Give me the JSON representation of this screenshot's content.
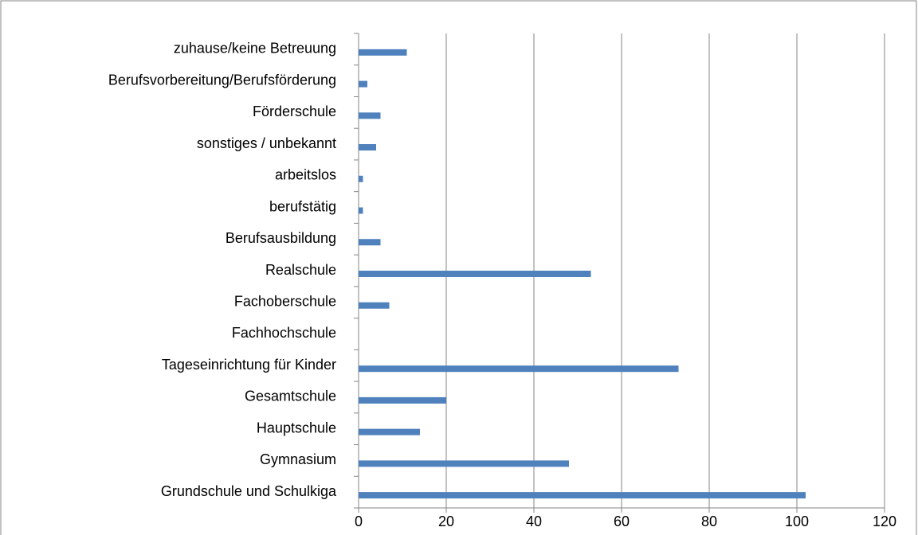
{
  "chart_data": {
    "type": "bar",
    "orientation": "horizontal",
    "categories": [
      "Grundschule und Schulkiga",
      "Gymnasium",
      "Hauptschule",
      "Gesamtschule",
      "Tageseinrichtung für Kinder",
      "Fachhochschule",
      "Fachoberschule",
      "Realschule",
      "Berufsausbildung",
      "berufstätig",
      "arbeitslos",
      "sonstiges / unbekannt",
      "Förderschule",
      "Berufsvorbereitung/Berufsförderung",
      "zuhause/keine Betreuung"
    ],
    "values": [
      102,
      48,
      14,
      20,
      73,
      0,
      7,
      53,
      5,
      1,
      1,
      4,
      5,
      2,
      11
    ],
    "color": "#4f81bd",
    "xlim": [
      0,
      120
    ],
    "xticks": [
      0,
      20,
      40,
      60,
      80,
      100,
      120
    ],
    "grid": true
  }
}
